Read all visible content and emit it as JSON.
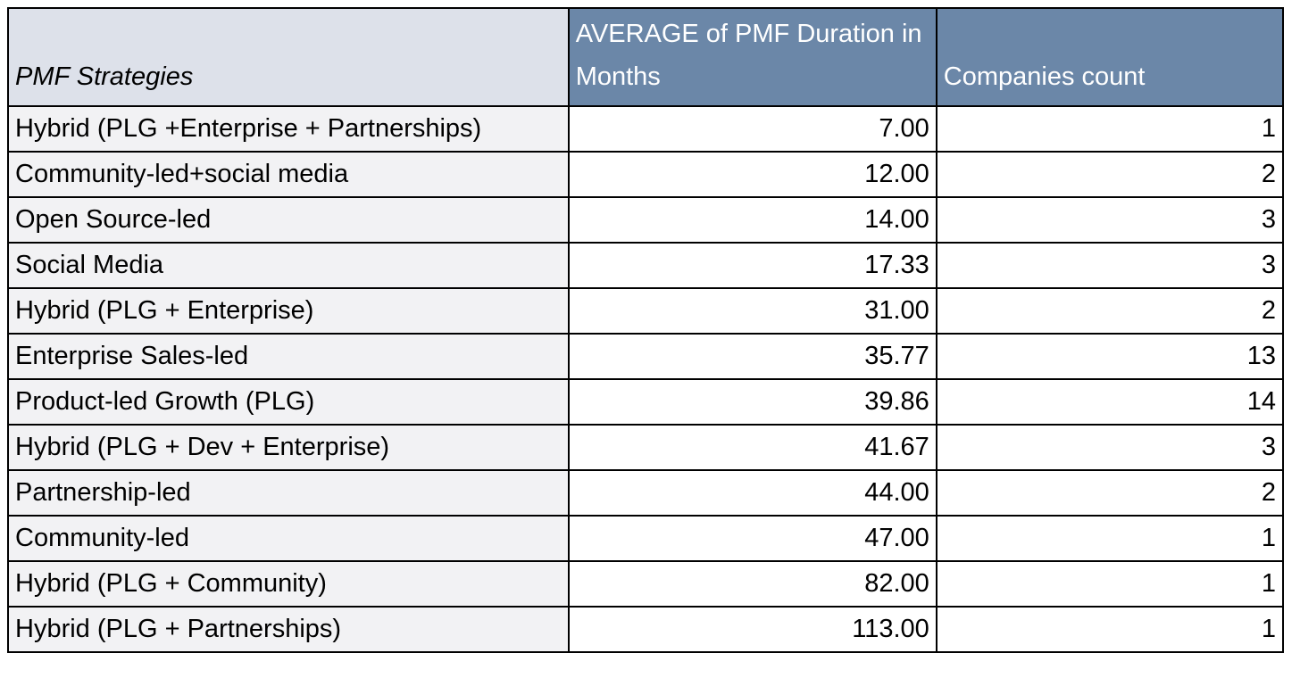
{
  "table": {
    "header": [
      "PMF Strategies",
      "AVERAGE of PMF Duration in Months",
      "Companies count"
    ],
    "rows": [
      [
        "Hybrid (PLG +Enterprise + Partnerships)",
        "7.00",
        "1"
      ],
      [
        "Community-led+social media",
        "12.00",
        "2"
      ],
      [
        "Open Source-led",
        "14.00",
        "3"
      ],
      [
        "Social Media",
        "17.33",
        "3"
      ],
      [
        "Hybrid (PLG + Enterprise)",
        "31.00",
        "2"
      ],
      [
        "Enterprise Sales-led",
        "35.77",
        "13"
      ],
      [
        "Product-led Growth (PLG)",
        "39.86",
        "14"
      ],
      [
        "Hybrid (PLG + Dev + Enterprise)",
        "41.67",
        "3"
      ],
      [
        "Partnership-led",
        "44.00",
        "2"
      ],
      [
        "Community-led",
        "47.00",
        "1"
      ],
      [
        "Hybrid (PLG + Community)",
        "82.00",
        "1"
      ],
      [
        "Hybrid (PLG + Partnerships)",
        "113.00",
        "1"
      ]
    ]
  }
}
